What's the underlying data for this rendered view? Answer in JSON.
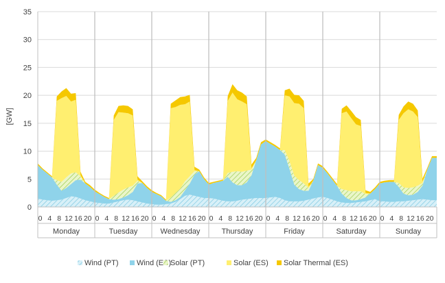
{
  "chart_data": {
    "type": "area",
    "stacked": true,
    "ylabel": "[GW]",
    "ylim": [
      0,
      35
    ],
    "yticks": [
      0,
      5,
      10,
      15,
      20,
      25,
      30,
      35
    ],
    "grid": true,
    "legend_position": "bottom",
    "categories": [
      "Monday",
      "Tuesday",
      "Wednesday",
      "Thursday",
      "Friday",
      "Saturday",
      "Sunday"
    ],
    "hour_tick_labels": [
      "0",
      "4",
      "8",
      "12",
      "16",
      "20"
    ],
    "hours": [
      0,
      2,
      4,
      6,
      8,
      10,
      12,
      14,
      16,
      18,
      20,
      22
    ],
    "series": [
      {
        "name": "Wind (PT)",
        "color": "#bfe6f2",
        "pattern": "hatch",
        "values": [
          [
            1.5,
            1.3,
            1.2,
            1.1,
            1.2,
            1.3,
            1.6,
            1.9,
            1.8,
            1.5,
            1.2,
            1.0
          ],
          [
            0.8,
            0.7,
            0.6,
            0.6,
            0.8,
            1.0,
            1.2,
            1.3,
            1.2,
            1.0,
            0.8,
            0.6
          ],
          [
            0.5,
            0.4,
            0.4,
            0.5,
            0.6,
            0.9,
            1.4,
            2.0,
            2.2,
            2.0,
            1.8,
            1.6
          ],
          [
            1.6,
            1.5,
            1.3,
            1.1,
            1.0,
            1.0,
            1.1,
            1.3,
            1.4,
            1.5,
            1.6,
            1.6
          ],
          [
            1.6,
            1.7,
            1.8,
            1.6,
            1.2,
            1.0,
            1.0,
            1.0,
            1.1,
            1.3,
            1.5,
            1.7
          ],
          [
            1.8,
            1.6,
            1.3,
            1.0,
            0.8,
            0.7,
            0.7,
            0.8,
            0.9,
            1.0,
            1.2,
            1.4
          ],
          [
            1.0,
            1.0,
            0.9,
            0.9,
            1.0,
            1.0,
            1.1,
            1.2,
            1.3,
            1.4,
            1.3,
            1.2
          ]
        ]
      },
      {
        "name": "Wind (ES)",
        "color": "#8fd3ea",
        "pattern": "solid",
        "values": [
          [
            6.0,
            5.4,
            4.8,
            4.2,
            2.8,
            1.6,
            1.8,
            2.2,
            3.0,
            3.4,
            3.0,
            2.6
          ],
          [
            2.0,
            1.6,
            1.2,
            0.8,
            0.5,
            0.4,
            0.5,
            0.8,
            1.5,
            3.2,
            3.5,
            2.8
          ],
          [
            2.2,
            1.9,
            1.5,
            0.6,
            0.3,
            0.3,
            0.4,
            1.0,
            2.0,
            3.8,
            4.6,
            3.4
          ],
          [
            2.4,
            2.8,
            3.2,
            3.6,
            4.4,
            3.4,
            2.8,
            2.6,
            3.0,
            4.2,
            6.8,
            9.6
          ],
          [
            10.2,
            9.6,
            9.0,
            8.6,
            8.2,
            5.8,
            3.0,
            2.2,
            1.8,
            1.6,
            3.2,
            5.8
          ],
          [
            5.2,
            4.4,
            3.6,
            2.8,
            1.6,
            0.9,
            0.5,
            0.4,
            0.5,
            0.7,
            1.2,
            1.8
          ],
          [
            3.2,
            3.4,
            3.6,
            3.6,
            2.6,
            1.4,
            1.0,
            1.0,
            1.4,
            2.4,
            5.4,
            7.6
          ]
        ]
      },
      {
        "name": "Solar (PT)",
        "color": "#c5e48a",
        "pattern": "hatch",
        "values": [
          [
            0,
            0,
            0,
            0,
            0.8,
            1.6,
            1.9,
            1.9,
            1.4,
            0.6,
            0,
            0
          ],
          [
            0,
            0,
            0,
            0,
            0.7,
            1.2,
            1.4,
            1.4,
            1.1,
            0.5,
            0,
            0
          ],
          [
            0,
            0,
            0,
            0,
            0.8,
            1.3,
            1.5,
            1.6,
            1.3,
            0.6,
            0,
            0
          ],
          [
            0,
            0,
            0,
            0,
            0.7,
            1.9,
            2.5,
            2.4,
            2.1,
            1.0,
            0,
            0
          ],
          [
            0,
            0,
            0,
            0,
            0.8,
            1.4,
            1.6,
            1.6,
            1.3,
            0.5,
            0,
            0
          ],
          [
            0,
            0,
            0,
            0,
            0.8,
            1.4,
            1.6,
            1.6,
            1.4,
            0.6,
            0,
            0
          ],
          [
            0,
            0,
            0,
            0,
            0.7,
            1.1,
            1.3,
            1.3,
            1.1,
            0.5,
            0,
            0
          ]
        ]
      },
      {
        "name": "Solar (ES)",
        "color": "#ffef70",
        "pattern": "solid",
        "values": [
          [
            0,
            0,
            0,
            0,
            14.2,
            15.0,
            14.6,
            12.9,
            13.0,
            0.2,
            0,
            0
          ],
          [
            0,
            0,
            0,
            0,
            13.6,
            14.4,
            13.8,
            13.3,
            12.6,
            0.2,
            0,
            0
          ],
          [
            0,
            0,
            0,
            0,
            16.0,
            15.4,
            15.0,
            13.8,
            13.4,
            0.2,
            0,
            0
          ],
          [
            0,
            0,
            0,
            0,
            12.9,
            14.2,
            12.9,
            12.6,
            11.9,
            0.2,
            0,
            0
          ],
          [
            0,
            0,
            0,
            0,
            9.8,
            11.6,
            13.0,
            13.7,
            13.5,
            0.2,
            0,
            0
          ],
          [
            0,
            0,
            0,
            0,
            13.6,
            14.1,
            13.1,
            12.0,
            11.7,
            0.2,
            0,
            0
          ],
          [
            0,
            0,
            0,
            0,
            11.3,
            13.3,
            14.1,
            13.6,
            12.3,
            0.2,
            0,
            0
          ]
        ]
      },
      {
        "name": "Solar Thermal (ES)",
        "color": "#f5c800",
        "pattern": "solid",
        "values": [
          [
            0.3,
            0.2,
            0.2,
            0.2,
            0.8,
            1.2,
            1.4,
            1.4,
            1.2,
            0.6,
            0.3,
            0.3
          ],
          [
            0.3,
            0.2,
            0.2,
            0.2,
            0.8,
            1.1,
            1.3,
            1.3,
            1.1,
            0.6,
            0.3,
            0.3
          ],
          [
            0.3,
            0.2,
            0.2,
            0.2,
            0.8,
            1.2,
            1.4,
            1.4,
            1.2,
            0.6,
            0.3,
            0.3
          ],
          [
            0.3,
            0.2,
            0.2,
            0.2,
            0.9,
            1.5,
            1.6,
            1.6,
            1.4,
            0.7,
            0.4,
            0.4
          ],
          [
            0.3,
            0.3,
            0.3,
            0.3,
            0.9,
            1.4,
            1.5,
            1.5,
            1.3,
            0.6,
            0.3,
            0.3
          ],
          [
            0.3,
            0.3,
            0.3,
            0.3,
            0.8,
            1.1,
            1.3,
            1.3,
            1.1,
            0.5,
            0.3,
            0.3
          ],
          [
            0.3,
            0.3,
            0.3,
            0.3,
            0.9,
            1.2,
            1.4,
            1.4,
            1.2,
            0.6,
            0.3,
            0.3
          ]
        ]
      }
    ]
  }
}
